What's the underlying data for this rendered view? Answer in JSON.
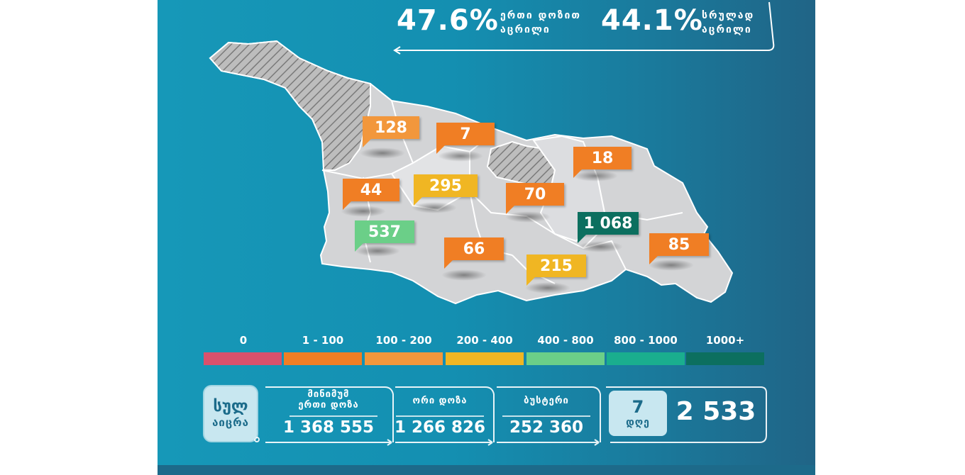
{
  "header": {
    "single_dose_pct": "47.6%",
    "single_dose_label_1": "ერთი დოზით",
    "single_dose_label_2": "აცრილი",
    "full_pct": "44.1%",
    "full_label_1": "სრულად",
    "full_label_2": "აცრილი"
  },
  "regions": [
    {
      "value": "128",
      "color": "#f2973c"
    },
    {
      "value": "7",
      "color": "#f07e24"
    },
    {
      "value": "18",
      "color": "#f07e24"
    },
    {
      "value": "44",
      "color": "#f07e24"
    },
    {
      "value": "295",
      "color": "#f0b623"
    },
    {
      "value": "70",
      "color": "#f07e24"
    },
    {
      "value": "537",
      "color": "#6bcf88"
    },
    {
      "value": "1 068",
      "color": "#0c6f5f"
    },
    {
      "value": "85",
      "color": "#f07e24"
    },
    {
      "value": "66",
      "color": "#f07e24"
    },
    {
      "value": "215",
      "color": "#f0b623"
    }
  ],
  "legend": [
    {
      "label": "0",
      "color": "#d9516c"
    },
    {
      "label": "1 - 100",
      "color": "#f07e24"
    },
    {
      "label": "100 - 200",
      "color": "#f2973c"
    },
    {
      "label": "200 - 400",
      "color": "#f0b623"
    },
    {
      "label": "400 - 800",
      "color": "#6bcf88"
    },
    {
      "label": "800 - 1000",
      "color": "#1aae8e"
    },
    {
      "label": "1000+",
      "color": "#0c6f5f"
    }
  ],
  "totals": {
    "total_label_1": "სულ",
    "total_label_2": "აიცრა",
    "min_one_label_1": "მინიმუმ",
    "min_one_label_2": "ერთი დოზა",
    "min_one_value": "1 368 555",
    "two_dose_label": "ორი დოზა",
    "two_dose_value": "1 266 826",
    "booster_label": "ბუსტერი",
    "booster_value": "252 360",
    "days_num": "7",
    "days_label": "დღე",
    "days_value": "2 533"
  }
}
